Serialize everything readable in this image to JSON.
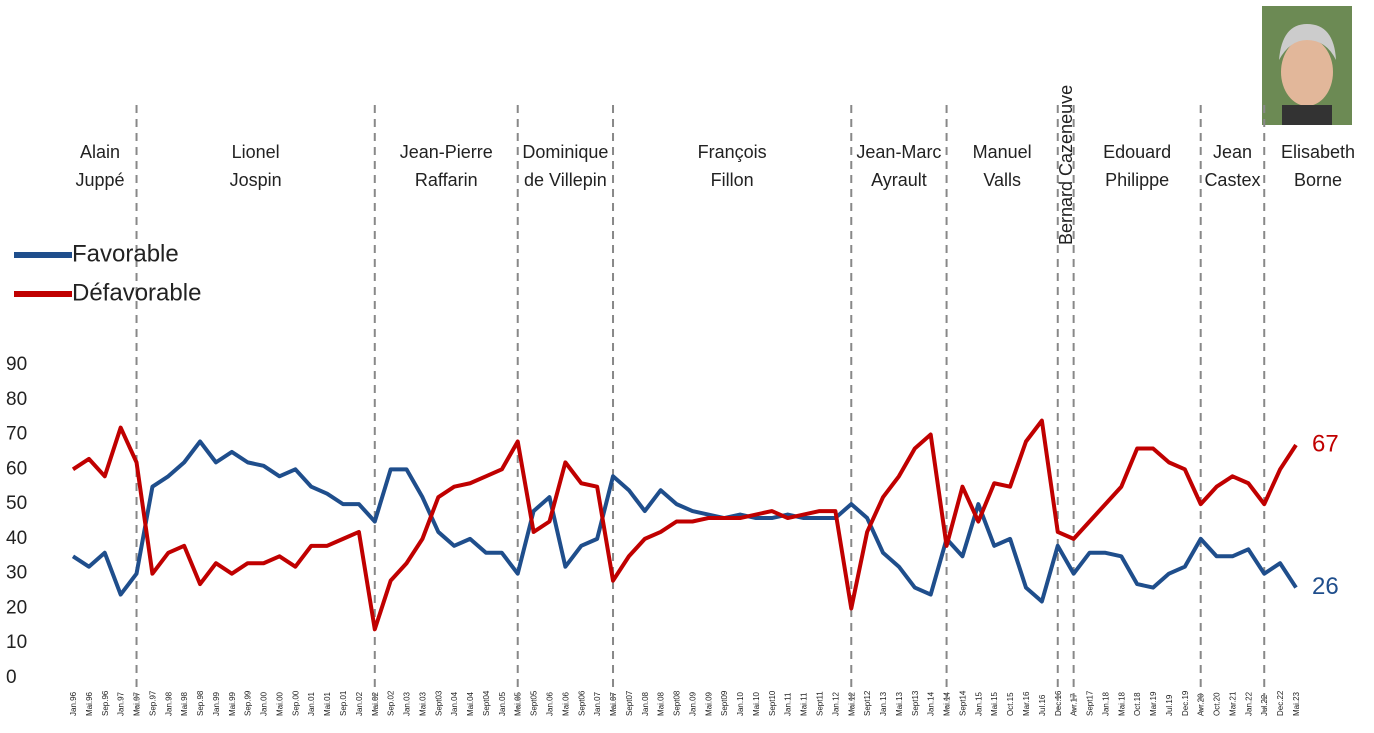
{
  "chart_data": {
    "type": "line",
    "categories": [
      "Jan.96",
      "Mai.96",
      "Sep.96",
      "Jan.97",
      "Mai.97",
      "Sep.97",
      "Jan.98",
      "Mai.98",
      "Sep.98",
      "Jan.99",
      "Mai.99",
      "Sep.99",
      "Jan.00",
      "Mai.00",
      "Sep.00",
      "Jan.01",
      "Mai.01",
      "Sep.01",
      "Jan.02",
      "Mai.02",
      "Sep.02",
      "Jan.03",
      "Mai.03",
      "Sept03",
      "Jan.04",
      "Mai.04",
      "Sept04",
      "Jan.05",
      "Mai.05",
      "Sept05",
      "Jan.06",
      "Mai.06",
      "Sept06",
      "Jan.07",
      "Mai.07",
      "Sept07",
      "Jan.08",
      "Mai.08",
      "Sept08",
      "Jan.09",
      "Mai.09",
      "Sept09",
      "Jan.10",
      "Mai.10",
      "Sept10",
      "Jan.11",
      "Mai.11",
      "Sept11",
      "Jan.12",
      "Mai.12",
      "Sept12",
      "Jan.13",
      "Mai.13",
      "Sept13",
      "Jan.14",
      "Mai.14",
      "Sept14",
      "Jan.15",
      "Mai.15",
      "Oct.15",
      "Mar.16",
      "Jul.16",
      "Dec.16",
      "Avr.17",
      "Sept17",
      "Jan.18",
      "Mai.18",
      "Oct.18",
      "Mar.19",
      "Jul.19",
      "Dec.19",
      "Avr.20",
      "Oct.20",
      "Mar.21",
      "Jan.22",
      "Jul.22",
      "Dec.22",
      "Mai.23"
    ],
    "series": [
      {
        "name": "Favorable",
        "color": "#1f4e8c",
        "values": [
          35,
          32,
          36,
          24,
          30,
          55,
          58,
          62,
          68,
          62,
          65,
          62,
          61,
          58,
          60,
          55,
          53,
          50,
          50,
          45,
          60,
          60,
          52,
          42,
          38,
          40,
          36,
          36,
          30,
          48,
          52,
          32,
          38,
          40,
          58,
          54,
          48,
          54,
          50,
          48,
          47,
          46,
          47,
          46,
          46,
          47,
          46,
          46,
          46,
          50,
          46,
          36,
          32,
          26,
          24,
          40,
          35,
          50,
          38,
          40,
          26,
          22,
          38,
          30,
          36,
          36,
          35,
          27,
          26,
          30,
          32,
          40,
          35,
          35,
          37,
          30,
          33,
          26
        ]
      },
      {
        "name": "Défavorable",
        "color": "#c00000",
        "values": [
          60,
          63,
          58,
          72,
          62,
          30,
          36,
          38,
          27,
          33,
          30,
          33,
          33,
          35,
          32,
          38,
          38,
          40,
          42,
          14,
          28,
          33,
          40,
          52,
          55,
          56,
          58,
          60,
          68,
          42,
          45,
          62,
          56,
          55,
          28,
          35,
          40,
          42,
          45,
          45,
          46,
          46,
          46,
          47,
          48,
          46,
          47,
          48,
          48,
          20,
          42,
          52,
          58,
          66,
          70,
          38,
          55,
          45,
          56,
          55,
          68,
          74,
          42,
          40,
          45,
          50,
          55,
          66,
          66,
          62,
          60,
          50,
          55,
          58,
          56,
          50,
          60,
          67
        ]
      }
    ],
    "ylim": [
      0,
      90
    ],
    "yticks": [
      0,
      10,
      20,
      30,
      40,
      50,
      60,
      70,
      80,
      90
    ],
    "periods": [
      {
        "label": [
          "Alain",
          "Juppé"
        ],
        "start": 0
      },
      {
        "label": [
          "Lionel",
          "Jospin"
        ],
        "start": 4
      },
      {
        "label": [
          "Jean-Pierre",
          "Raffarin"
        ],
        "start": 19
      },
      {
        "label": [
          "Dominique",
          "de Villepin"
        ],
        "start": 28
      },
      {
        "label": [
          "François",
          "Fillon"
        ],
        "start": 34
      },
      {
        "label": [
          "Jean-Marc",
          "Ayrault"
        ],
        "start": 49
      },
      {
        "label": [
          "Manuel",
          "Valls"
        ],
        "start": 55
      },
      {
        "label": [
          "Bernard Cazeneuve"
        ],
        "start": 62
      },
      {
        "label": [
          "Edouard",
          "Philippe"
        ],
        "start": 63
      },
      {
        "label": [
          "Jean",
          "Castex"
        ],
        "start": 71
      },
      {
        "label": [
          "Elisabeth",
          "Borne"
        ],
        "start": 75
      }
    ]
  }
}
